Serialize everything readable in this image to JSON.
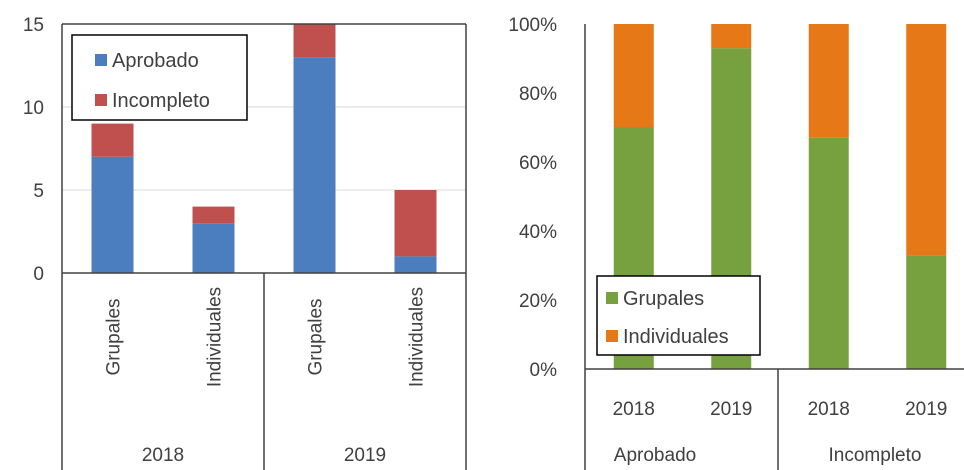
{
  "colors": {
    "aprobado": "#4a7ebf",
    "incompleto": "#c0504d",
    "grupales": "#77a03f",
    "individuales": "#e77817",
    "axis": "#404040",
    "frame": "#000000"
  },
  "chart_data": [
    {
      "type": "bar",
      "stacked": true,
      "title": "",
      "ylim": [
        0,
        15
      ],
      "yticks": [
        "0",
        "5",
        "10",
        "15"
      ],
      "categories": [
        "Grupales",
        "Individuales",
        "Grupales",
        "Individuales"
      ],
      "groups": [
        "2018",
        "2019"
      ],
      "series": [
        {
          "name": "Aprobado",
          "values": [
            7,
            3,
            13,
            1
          ]
        },
        {
          "name": "Incompleto",
          "values": [
            2,
            1,
            2,
            4
          ]
        }
      ],
      "legend": "top-left"
    },
    {
      "type": "bar",
      "stacked": true,
      "percent": true,
      "title": "",
      "ylim": [
        0,
        100
      ],
      "yticks": [
        "0%",
        "20%",
        "40%",
        "60%",
        "80%",
        "100%"
      ],
      "categories": [
        "2018",
        "2019",
        "2018",
        "2019"
      ],
      "groups": [
        "Aprobado",
        "Incompleto"
      ],
      "series": [
        {
          "name": "Grupales",
          "values": [
            70,
            93,
            67,
            33
          ]
        },
        {
          "name": "Individuales",
          "values": [
            30,
            7,
            33,
            67
          ]
        }
      ],
      "legend": "bottom-left"
    }
  ]
}
